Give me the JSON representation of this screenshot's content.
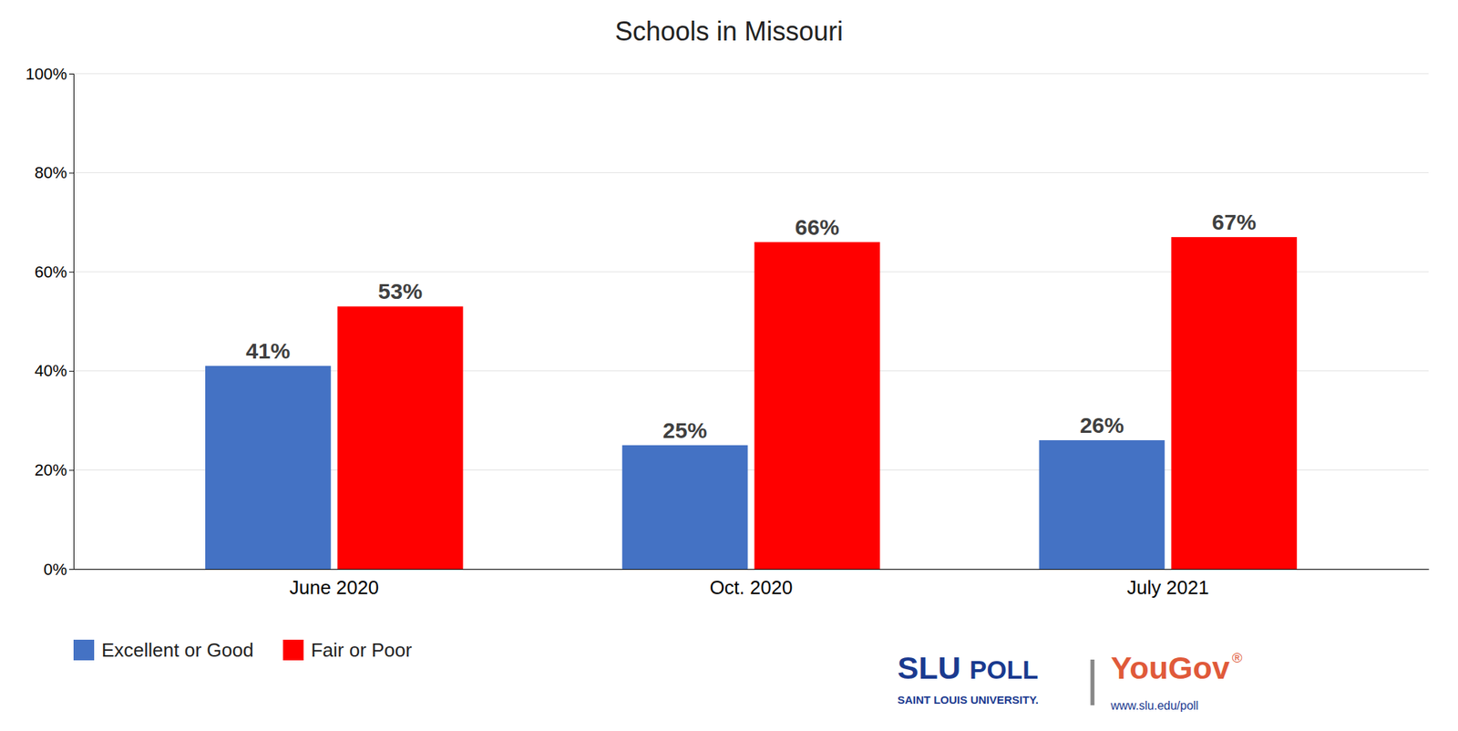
{
  "chart_data": {
    "type": "bar",
    "title": "Schools in Missouri",
    "categories": [
      "June 2020",
      "Oct. 2020",
      "July 2021"
    ],
    "series": [
      {
        "name": "Excellent or Good",
        "color": "#4472C4",
        "values": [
          41,
          25,
          26
        ],
        "value_labels": [
          "41%",
          "25%",
          "26%"
        ]
      },
      {
        "name": "Fair or Poor",
        "color": "#FF0000",
        "values": [
          53,
          66,
          67
        ],
        "value_labels": [
          "53%",
          "66%",
          "67%"
        ]
      }
    ],
    "ylim": [
      0,
      100
    ],
    "yticks": [
      {
        "value": 0,
        "label": "0%"
      },
      {
        "value": 20,
        "label": "20%"
      },
      {
        "value": 40,
        "label": "40%"
      },
      {
        "value": 60,
        "label": "60%"
      },
      {
        "value": 80,
        "label": "80%"
      },
      {
        "value": 100,
        "label": "100%"
      }
    ],
    "grid": true,
    "data_labels": true,
    "legend": "lower left",
    "annotations": [
      {
        "text": "SLU",
        "color": "#1a3a8f"
      },
      {
        "text": "POLL",
        "color": "#1a3a8f"
      },
      {
        "text": "SAINT LOUIS UNIVERSITY.",
        "color": "#1a3a8f"
      },
      {
        "text": "|",
        "color": "#888888"
      },
      {
        "text": "YouGov",
        "color": "#e05a3a"
      },
      {
        "text": "®",
        "color": "#e05a3a"
      },
      {
        "text": "www.slu.edu/poll",
        "color": "#1a3a8f"
      }
    ]
  }
}
